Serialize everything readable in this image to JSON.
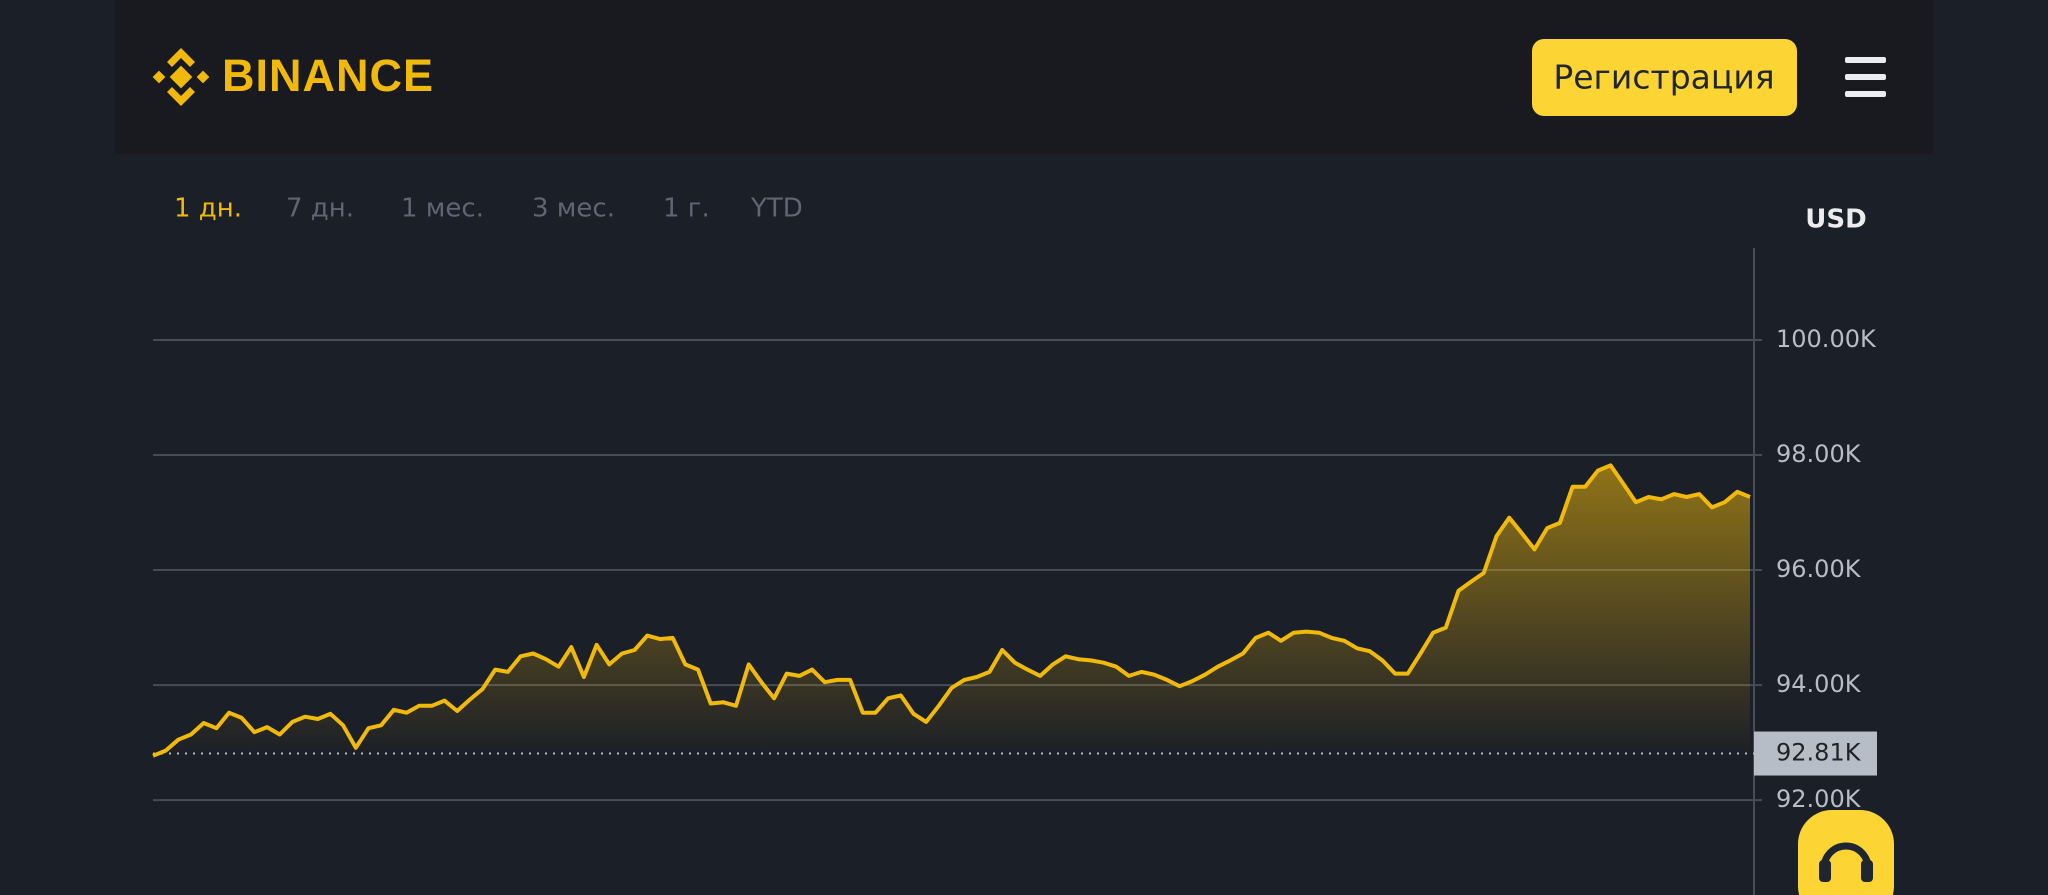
{
  "header": {
    "logo": "BINANCE",
    "register_button": "Регистрация"
  },
  "timeframes": [
    "1 дн.",
    "7 дн.",
    "1 мес.",
    "3 мес.",
    "1 г.",
    "YTD"
  ],
  "chart_data": {
    "type": "area",
    "axis_unit": "USD",
    "color": "#f0b90b",
    "ylim": [
      90350,
      101600
    ],
    "yticks": [
      {
        "value": 92000,
        "label": "92.00K"
      },
      {
        "value": 94000,
        "label": "94.00K"
      },
      {
        "value": 96000,
        "label": "96.00K"
      },
      {
        "value": 98000,
        "label": "98.00K"
      },
      {
        "value": 100000,
        "label": "100.00K"
      }
    ],
    "grid": true,
    "reference": {
      "value": 92810,
      "label": "92.81K"
    },
    "values": [
      92770,
      92860,
      93050,
      93140,
      93340,
      93250,
      93520,
      93430,
      93180,
      93270,
      93140,
      93360,
      93450,
      93410,
      93500,
      93300,
      92910,
      93250,
      93300,
      93570,
      93520,
      93640,
      93640,
      93730,
      93550,
      93750,
      93930,
      94270,
      94230,
      94500,
      94550,
      94450,
      94320,
      94660,
      94140,
      94700,
      94360,
      94550,
      94610,
      94860,
      94800,
      94820,
      94360,
      94270,
      93680,
      93700,
      93640,
      94360,
      94050,
      93770,
      94200,
      94160,
      94270,
      94050,
      94090,
      94090,
      93520,
      93520,
      93770,
      93820,
      93500,
      93360,
      93640,
      93950,
      94090,
      94140,
      94230,
      94610,
      94390,
      94270,
      94160,
      94360,
      94500,
      94450,
      94430,
      94390,
      94320,
      94160,
      94230,
      94180,
      94090,
      93980,
      94070,
      94180,
      94320,
      94430,
      94550,
      94820,
      94910,
      94770,
      94910,
      94930,
      94910,
      94820,
      94770,
      94640,
      94590,
      94430,
      94200,
      94200,
      94550,
      94910,
      95000,
      95640,
      95800,
      95950,
      96590,
      96910,
      96640,
      96360,
      96730,
      96820,
      97450,
      97450,
      97730,
      97820,
      97500,
      97180,
      97270,
      97230,
      97320,
      97270,
      97320,
      97090,
      97180,
      97360,
      97270
    ]
  }
}
